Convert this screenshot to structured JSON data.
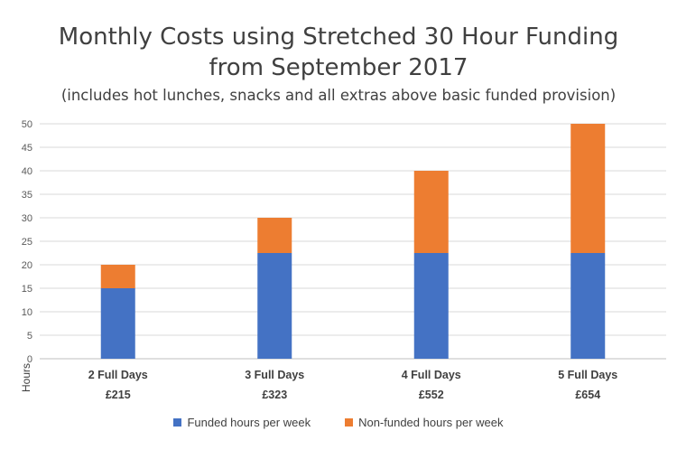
{
  "chart_data": {
    "type": "bar",
    "stacked": true,
    "title": "Monthly Costs using Stretched 30 Hour Funding",
    "title_line2": "from September 2017",
    "subtitle": "(includes hot lunches, snacks and all extras above basic funded provision)",
    "ylabel": "Hours",
    "xlabel": "",
    "ylim": [
      0,
      50
    ],
    "yticks": [
      0,
      5,
      10,
      15,
      20,
      25,
      30,
      35,
      40,
      45,
      50
    ],
    "categories": [
      "2 Full Days",
      "3 Full Days",
      "4 Full Days",
      "5 Full Days"
    ],
    "category_costs": [
      "£215",
      "£323",
      "£552",
      "£654"
    ],
    "series": [
      {
        "name": "Funded hours per week",
        "color": "#4472c4",
        "values": [
          15,
          22.5,
          22.5,
          22.5
        ]
      },
      {
        "name": "Non-funded hours per week",
        "color": "#ed7d31",
        "values": [
          5,
          7.5,
          17.5,
          27.5
        ]
      }
    ],
    "grid": true,
    "legend_position": "bottom"
  }
}
